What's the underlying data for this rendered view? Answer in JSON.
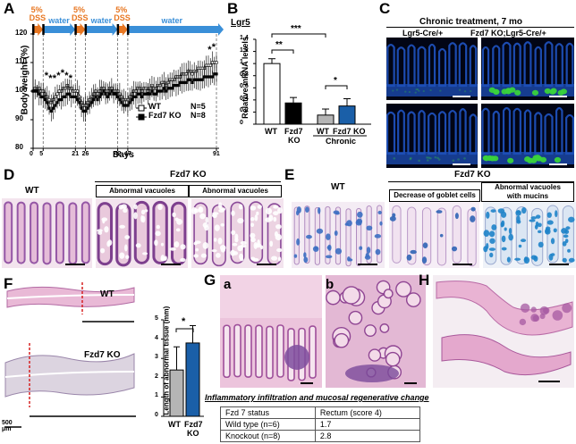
{
  "panel_letters": {
    "A": "A",
    "B": "B",
    "C": "C",
    "D": "D",
    "E": "E",
    "F": "F",
    "G": "G",
    "H": "H"
  },
  "colors": {
    "dss": "#e87722",
    "water": "#3a8fd8",
    "he_pink": "#d9a0c4",
    "he_purple": "#7a4a9a",
    "fluor_blue": "#1d4fb8",
    "fluor_green": "#39d23c",
    "ab_blue": "#2a8ad0",
    "wt_bar": "#ffffff",
    "ko_bar": "#000000",
    "wt_chronic": "#b5b5b5",
    "ko_chronic": "#1a5fa8",
    "ref_line": "#d62020"
  },
  "panelA": {
    "dss_label_1": "5%",
    "dss_label_2": "DSS",
    "water_label": "water",
    "ylabel": "Body weight (%)",
    "xlabel": "Days",
    "yticks": [
      "80",
      "90",
      "100",
      "110",
      "120"
    ],
    "xticks": [
      "0",
      "5",
      "21",
      "26",
      "42",
      "47",
      "91"
    ],
    "legend_wt": "WT",
    "legend_ko": "Fzd7 KO",
    "n_wt": "N=5",
    "n_ko": "N=8",
    "star": "*"
  },
  "chart_data": [
    {
      "type": "line",
      "panel": "A",
      "xlabel": "Days",
      "ylabel": "Body weight (%)",
      "ylim": [
        80,
        120
      ],
      "xlim": [
        0,
        91
      ],
      "series": [
        {
          "name": "WT",
          "x": [
            0,
            1,
            2,
            3,
            4,
            5,
            6,
            7,
            8,
            9,
            10,
            11,
            12,
            13,
            14,
            15,
            16,
            17,
            18,
            19,
            20,
            21,
            22,
            23,
            24,
            25,
            26,
            27,
            28,
            29,
            30,
            31,
            32,
            33,
            34,
            35,
            36,
            37,
            38,
            39,
            40,
            41,
            42,
            43,
            44,
            45,
            46,
            47,
            48,
            49,
            50,
            51,
            52,
            53,
            54,
            55,
            56,
            57,
            58,
            59,
            60,
            61,
            62,
            63,
            64,
            65,
            66,
            67,
            68,
            69,
            70,
            71,
            72,
            73,
            74,
            75,
            76,
            77,
            78,
            79,
            80,
            81,
            82,
            83,
            84,
            85,
            86,
            87,
            88,
            89,
            90,
            91
          ],
          "y": [
            100,
            101,
            100,
            101,
            100,
            100,
            99,
            98,
            97,
            96,
            97,
            98,
            99,
            100,
            100,
            101,
            101,
            102,
            101,
            101,
            100,
            100,
            100,
            98,
            96,
            95,
            95,
            96,
            97,
            98,
            99,
            100,
            99,
            100,
            101,
            101,
            100,
            100,
            101,
            101,
            100,
            100,
            100,
            99,
            98,
            97,
            97,
            97,
            98,
            99,
            100,
            100,
            101,
            101,
            100,
            101,
            101,
            100,
            101,
            102,
            101,
            101,
            102,
            102,
            103,
            103,
            102,
            103,
            104,
            104,
            104,
            105,
            105,
            105,
            106,
            106,
            106,
            107,
            107,
            106,
            107,
            107,
            108,
            108,
            108,
            108,
            109,
            109,
            109,
            110,
            110,
            110
          ]
        },
        {
          "name": "Fzd7 KO",
          "x": [
            0,
            1,
            2,
            3,
            4,
            5,
            6,
            7,
            8,
            9,
            10,
            11,
            12,
            13,
            14,
            15,
            16,
            17,
            18,
            19,
            20,
            21,
            22,
            23,
            24,
            25,
            26,
            27,
            28,
            29,
            30,
            31,
            32,
            33,
            34,
            35,
            36,
            37,
            38,
            39,
            40,
            41,
            42,
            43,
            44,
            45,
            46,
            47,
            48,
            49,
            50,
            51,
            52,
            53,
            54,
            55,
            56,
            57,
            58,
            59,
            60,
            61,
            62,
            63,
            64,
            65,
            66,
            67,
            68,
            69,
            70,
            71,
            72,
            73,
            74,
            75,
            76,
            77,
            78,
            79,
            80,
            81,
            82,
            83,
            84,
            85,
            86,
            87,
            88,
            89,
            90,
            91
          ],
          "y": [
            100,
            100,
            100,
            99,
            98,
            98,
            97,
            96,
            94,
            93,
            94,
            95,
            96,
            97,
            97,
            98,
            98,
            99,
            99,
            98,
            98,
            98,
            97,
            96,
            94,
            93,
            93,
            94,
            95,
            96,
            97,
            98,
            97,
            98,
            99,
            100,
            99,
            98,
            99,
            100,
            99,
            99,
            98,
            97,
            96,
            95,
            95,
            95,
            96,
            97,
            98,
            98,
            99,
            99,
            98,
            99,
            99,
            99,
            99,
            100,
            99,
            99,
            100,
            100,
            100,
            101,
            100,
            101,
            101,
            101,
            102,
            102,
            102,
            103,
            103,
            103,
            103,
            104,
            104,
            103,
            104,
            104,
            104,
            104,
            104,
            105,
            105,
            105,
            105,
            105,
            106,
            106
          ]
        }
      ]
    },
    {
      "type": "bar",
      "panel": "B",
      "title": "Lgr5",
      "ylabel": "Relative mRNA levels",
      "ylim": [
        0,
        1.4
      ],
      "yticks": [
        "0",
        "0.2",
        "0.4",
        "0.6",
        "0.8",
        "1",
        "1.2",
        "1.4"
      ],
      "categories": [
        "WT",
        "Fzd7 KO",
        "WT",
        "Fzd7 KO"
      ],
      "cat_labels": [
        "WT",
        "Fzd7\nKO",
        "WT",
        "Fzd7 KO"
      ],
      "group_label": "Chronic",
      "values": [
        1.0,
        0.35,
        0.15,
        0.3
      ],
      "errors": [
        0.08,
        0.09,
        0.1,
        0.12
      ],
      "bar_colors": [
        "#ffffff",
        "#000000",
        "#b5b5b5",
        "#1a5fa8"
      ],
      "sig": [
        "**",
        "***",
        "*"
      ]
    },
    {
      "type": "bar",
      "panel": "F",
      "ylabel": "Length of abnormal tissue (mm)",
      "ylim": [
        0,
        5
      ],
      "yticks": [
        "0",
        "1",
        "2",
        "3",
        "4",
        "5"
      ],
      "categories": [
        "WT",
        "Fzd7 KO"
      ],
      "cat_labels": [
        "WT",
        "Fzd7\nKO"
      ],
      "values": [
        2.4,
        3.8
      ],
      "errors": [
        1.2,
        0.9
      ],
      "bar_colors": [
        "#b5b5b5",
        "#1a5fa8"
      ],
      "sig": [
        "*"
      ]
    }
  ],
  "panelC": {
    "title": "Chronic treatment, 7 mo",
    "col1": "Lgr5-Cre/+",
    "col2": "Fzd7 KO;Lgr5-Cre/+"
  },
  "panelD": {
    "wt": "WT",
    "ko": "Fzd7 KO",
    "box1": "Abnormal vacuoles",
    "box2": "Abnormal vacuoles"
  },
  "panelE": {
    "wt": "WT",
    "ko": "Fzd7 KO",
    "box1": "Decrease of goblet cells",
    "box2_l1": "Abnormal vacuoles",
    "box2_l2": "with mucins"
  },
  "panelF": {
    "wt": "WT",
    "ko": "Fzd7 KO",
    "scale_1": "500",
    "scale_2": "μm"
  },
  "panelG": {
    "sub_a": "a",
    "sub_b": "b",
    "table_title": "Inflammatory infiltration and mucosal regenerative change",
    "table": [
      [
        "Fzd 7 status",
        "Rectum (score 4)"
      ],
      [
        "Wild type (n=6)",
        "1.7"
      ],
      [
        "Knockout (n=8)",
        "2.8"
      ]
    ]
  }
}
